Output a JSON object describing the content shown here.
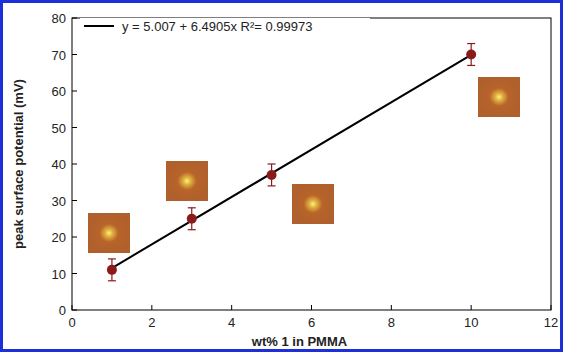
{
  "chart_data": {
    "type": "scatter",
    "x_label": "wt% 1 in PMMA",
    "y_label": "peak surface potential (mV)",
    "xlim": [
      0,
      12
    ],
    "xticks": [
      0,
      2,
      4,
      6,
      8,
      10,
      12
    ],
    "ylim": [
      0,
      80
    ],
    "yticks": [
      0,
      10,
      20,
      30,
      40,
      50,
      60,
      70,
      80
    ],
    "legend": "upper left",
    "grid": false,
    "series": [
      {
        "name": "y = 5.007 + 6.4905x   R²= 0.99973",
        "type": "line",
        "color": "#000000",
        "line_style": "solid",
        "x": [
          1,
          10
        ],
        "values": [
          11.5,
          69.9
        ]
      },
      {
        "type": "scatter",
        "color": "#8b1a1a",
        "marker": "circle",
        "x": [
          1,
          3,
          5,
          10
        ],
        "values": [
          11,
          25,
          37,
          70
        ],
        "error": [
          3,
          3,
          3,
          3
        ]
      }
    ]
  }
}
